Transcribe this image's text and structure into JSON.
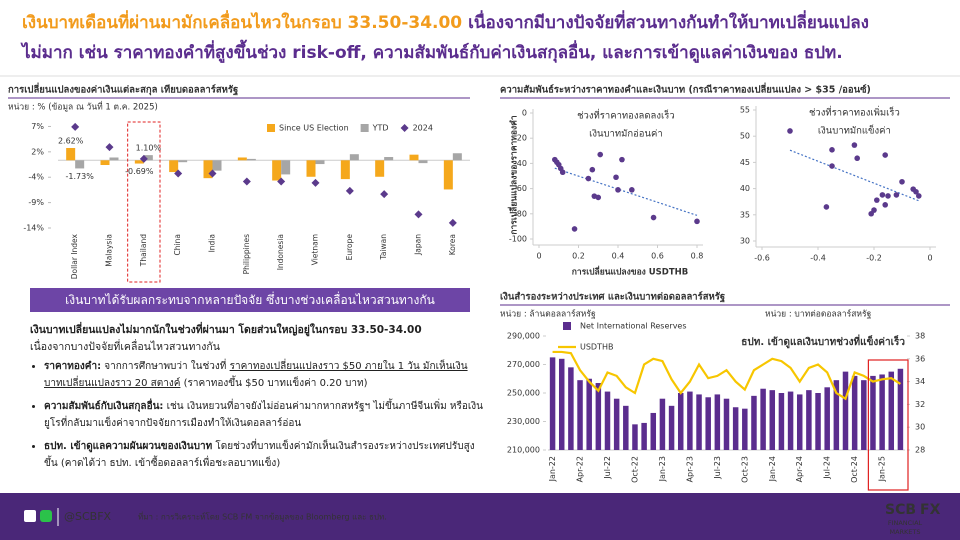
{
  "header": {
    "title_parts": [
      "เงินบาทเดือนที่ผ่านมามักเคลื่อนไหวในกรอบ 33.50-34.00",
      "เนื่องจากมีบางปัจจัยที่สวนทางกันทำให้บาทเปลี่ยนแปลง",
      "ไม่มาก เช่น ราคาทองคำที่สูงขึ้นช่วง risk-off, ความสัมพันธ์กับค่าเงินสกุลอื่น, และการเข้าดูแลค่าเงินของ ธปท."
    ]
  },
  "summary": {
    "banner": "เงินบาทได้รับผลกระทบจากหลายปัจจัย ซึ่งบางช่วงเคลื่อนไหวสวนทางกัน",
    "intro": "เงินบาทเปลี่ยนแปลงไม่มากนักในช่วงที่ผ่านมา โดยส่วนใหญ่อยู่ในกรอบ 33.50-34.00",
    "intro_2": "เนื่องจากบางปัจจัยที่เคลื่อนไหวสวนทางกัน",
    "bullets": [
      {
        "lead": "ราคาทองคำ:",
        "text": [
          "จากการศึกษาพบว่า ในช่วงที่",
          "ราคาทองเปลี่ยนแปลงราว $50 ภายใน 1 วัน มักเห็นเงินบาทเปลี่ยนแปลงราว 20 สตางค์",
          " (ราคาทองขึ้น $50 บาทแข็งค่า 0.20 บาท)"
        ]
      },
      {
        "lead": "ความสัมพันธ์กับเงินสกุลอื่น:",
        "text": [
          "เช่น เงินหยวนที่อาจยังไม่อ่อนค่ามากหากสหรัฐฯ ไม่ขึ้นภาษีจีนเพิ่ม หรือเงินยูโรที่กลับมาแข็งค่าจากปัจจัยการเมืองทำให้เงินดอลลาร์อ่อน"
        ]
      },
      {
        "lead": "ธปท. เข้าดูแลความผันผวนของเงินบาท",
        "text": [
          "โดยช่วงที่บาทแข็งค่ามักเห็นเงินสำรองระหว่างประเทศปรับสูงขึ้น (คาดได้ว่า ธปท. เข้าซื้อดอลลาร์เพื่อชะลอบาทแข็ง)"
        ]
      }
    ]
  },
  "footer": {
    "handle": "@SCBFX",
    "source": "ที่มา : การวิเคราะห์โดย SCB FM จากข้อมูลของ Bloomberg และ ธปท.",
    "logo": [
      "SCB",
      "FX",
      "FINANCIAL",
      "MARKETS"
    ]
  },
  "chart_data": [
    {
      "type": "bar",
      "title": "การเปลี่ยนแปลงของค่าเงินแต่ละสกุล เทียบดอลลาร์สหรัฐ",
      "subtitle": "หน่วย : % (ข้อมูล ณ วันที่ 1 ต.ค. 2025)",
      "categories": [
        "Dollar Index",
        "Malaysia",
        "Thailand",
        "China",
        "India",
        "Philippines",
        "Indonesia",
        "Vietnam",
        "Europe",
        "Taiwan",
        "Japan",
        "Korea"
      ],
      "series": [
        {
          "name": "Since US Election",
          "color": "#f5a81c",
          "values": [
            2.62,
            -1.0,
            -0.69,
            -2.5,
            -3.8,
            0.6,
            -4.3,
            -3.5,
            -4.0,
            -3.5,
            1.2,
            -6.2
          ],
          "value_labels": [
            "2.62%",
            null,
            "-0.69%",
            null,
            null,
            null,
            null,
            null,
            null,
            null,
            null,
            null
          ]
        },
        {
          "name": "YTD",
          "color": "#a6a6a6",
          "values": [
            -1.73,
            0.6,
            1.1,
            -0.4,
            -2.2,
            0.3,
            -3.0,
            -0.8,
            1.3,
            0.7,
            -0.6,
            1.5
          ],
          "value_labels": [
            "-1.73%",
            null,
            "1.10%",
            null,
            null,
            null,
            null,
            null,
            null,
            null,
            null,
            null
          ]
        },
        {
          "name": "2024",
          "type": "scatter",
          "color": "#5b3a8c",
          "values": [
            7.1,
            2.8,
            0.3,
            -2.8,
            -2.8,
            -4.5,
            -4.5,
            -4.8,
            -6.5,
            -7.2,
            -11.5,
            -13.3
          ]
        }
      ],
      "ylim": [
        -14.4,
        9
      ],
      "yticks": [
        {
          "value": 7.2,
          "label": "7%"
        },
        {
          "value": 1.8,
          "label": "2%"
        },
        {
          "value": -3.6,
          "label": "-4%"
        },
        {
          "value": -9,
          "label": "-9%"
        },
        {
          "value": -14.4,
          "label": "-14%"
        }
      ],
      "highlight": "Thailand"
    },
    {
      "type": "scatter",
      "title": "ความสัมพันธ์ระหว่างราคาทองคำและเงินบาท (กรณีราคาทองเปลี่ยนแปลง > $35 /ออนซ์)",
      "ylabel": "การเปลี่ยนแปลงของราคาทองคำ",
      "xlabel": "การเปลี่ยนแปลงของ USDTHB",
      "annotation": [
        "ช่วงที่ราคาทองลดลงเร็ว",
        "เงินบาทมักอ่อนค่า"
      ],
      "annotation_color": "#e02020",
      "color": "#5b3a8c",
      "trendline": true,
      "x": [
        0.08,
        0.1,
        0.11,
        0.09,
        0.12,
        0.27,
        0.31,
        0.42,
        0.25,
        0.28,
        0.3,
        0.4,
        0.18,
        0.39,
        0.47,
        0.58,
        0.8
      ],
      "values": [
        -37,
        -41,
        -44,
        -39,
        -47,
        -45,
        -33,
        -37,
        -52,
        -66,
        -67,
        -61,
        -92,
        -51,
        -61,
        -83,
        -86
      ],
      "xlim": [
        0,
        0.8
      ],
      "ylim": [
        -100,
        0
      ],
      "xticks": [
        0,
        0.2,
        0.4,
        0.6,
        0.8
      ],
      "yticks": [
        0,
        -20,
        -40,
        -60,
        -80,
        -100
      ]
    },
    {
      "type": "scatter",
      "annotation": [
        "ช่วงที่ราคาทองเพิ่มเร็ว",
        "เงินบาทมักแข็งค่า"
      ],
      "annotation_color": "#1faa4a",
      "color": "#5b3a8c",
      "trendline": true,
      "x": [
        -0.5,
        -0.35,
        -0.35,
        -0.27,
        -0.26,
        -0.16,
        -0.37,
        -0.21,
        -0.2,
        -0.17,
        -0.16,
        -0.15,
        -0.12,
        -0.1,
        -0.06,
        -0.05,
        -0.04,
        -0.19
      ],
      "values": [
        51.0,
        47.4,
        44.3,
        48.3,
        45.8,
        46.4,
        36.5,
        35.2,
        35.9,
        38.8,
        36.9,
        38.6,
        38.8,
        41.3,
        39.9,
        39.4,
        38.6,
        37.8
      ],
      "xlim": [
        -0.6,
        0
      ],
      "ylim": [
        30,
        55
      ],
      "xticks": [
        -0.6,
        -0.4,
        -0.2,
        0
      ],
      "yticks": [
        30,
        35,
        40,
        45,
        50,
        55
      ]
    },
    {
      "type": "bar_line",
      "title": "เงินสำรองระหว่างประเทศ และเงินบาทต่อดอลลาร์สหรัฐ",
      "y_unit": "หน่วย : ล้านดอลลาร์สหรัฐ",
      "y2_unit": "หน่วย : บาทต่อดอลลาร์สหรัฐ",
      "annotation": "ธปท. เข้าดูแลเงินบาทช่วงที่แข็งค่าเร็ว",
      "categories": [
        "Jan-22",
        null,
        null,
        "Apr-22",
        null,
        null,
        "Jul-22",
        null,
        null,
        "Oct-22",
        null,
        null,
        "Jan-23",
        null,
        null,
        "Apr-23",
        null,
        null,
        "Jul-23",
        null,
        null,
        "Oct-23",
        null,
        null,
        "Jan-24",
        null,
        null,
        "Apr-24",
        null,
        null,
        "Jul-24",
        null,
        null,
        "Oct-24",
        null,
        null,
        "Jan-25",
        null,
        null
      ],
      "series": [
        {
          "name": "Net International Reserves",
          "type": "bar",
          "color": "#5b2d8e",
          "values": [
            275000,
            274000,
            268000,
            259000,
            260000,
            257000,
            251000,
            246000,
            241000,
            228000,
            229000,
            236000,
            246000,
            241000,
            250000,
            251000,
            249000,
            247000,
            249000,
            246000,
            240000,
            239000,
            248000,
            253000,
            252000,
            250000,
            251000,
            249000,
            252000,
            250000,
            254000,
            259000,
            265000,
            262000,
            259000,
            262000,
            263000,
            265000,
            267000
          ]
        },
        {
          "name": "USDTHB",
          "type": "line",
          "axis": "y2",
          "color": "#f7c600",
          "values": [
            36.6,
            36.6,
            36.5,
            35.0,
            34.0,
            33.2,
            34.8,
            34.5,
            33.5,
            33.0,
            35.5,
            36.0,
            35.8,
            34.2,
            33.0,
            34.0,
            35.5,
            34.3,
            34.5,
            35.0,
            34.0,
            33.3,
            35.0,
            35.5,
            36.0,
            35.8,
            35.2,
            34.0,
            35.2,
            35.5,
            34.8,
            33.0,
            32.5,
            34.8,
            34.5,
            34.0,
            34.2,
            34.3,
            33.8
          ]
        }
      ],
      "ylim": [
        210000,
        290000
      ],
      "yticks": [
        {
          "value": 210000,
          "label": "210,000"
        },
        {
          "value": 230000,
          "label": "230,000"
        },
        {
          "value": 250000,
          "label": "250,000"
        },
        {
          "value": 270000,
          "label": "270,000"
        },
        {
          "value": 290000,
          "label": "290,000"
        }
      ],
      "y2lim": [
        28,
        38
      ],
      "y2ticks": [
        28,
        30,
        32,
        34,
        36,
        38
      ]
    }
  ]
}
